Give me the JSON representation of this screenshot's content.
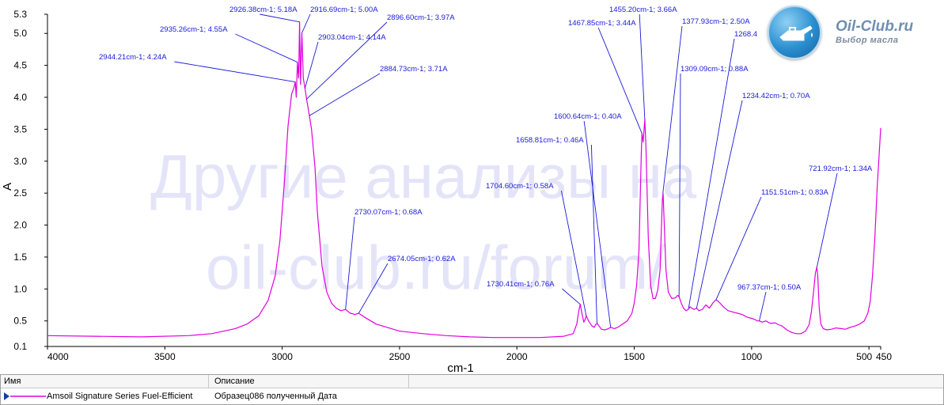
{
  "chart_data": {
    "type": "line",
    "xlabel": "cm-1",
    "ylabel": "A",
    "xlim": [
      4000,
      450
    ],
    "ylim": [
      0.1,
      5.3
    ],
    "x_ticks": [
      {
        "v": 4000,
        "label": "4000"
      },
      {
        "v": 3500,
        "label": "3500"
      },
      {
        "v": 3000,
        "label": "3000"
      },
      {
        "v": 2500,
        "label": "2500"
      },
      {
        "v": 2000,
        "label": "2000"
      },
      {
        "v": 1500,
        "label": "1500"
      },
      {
        "v": 1000,
        "label": "1000"
      },
      {
        "v": 500,
        "label": "500"
      },
      {
        "v": 450,
        "label": "450"
      }
    ],
    "y_ticks": [
      {
        "v": 5.3,
        "label": "5.3"
      },
      {
        "v": 5.0,
        "label": "5.0"
      },
      {
        "v": 4.5,
        "label": "4.5"
      },
      {
        "v": 4.0,
        "label": "4.0"
      },
      {
        "v": 3.5,
        "label": "3.5"
      },
      {
        "v": 3.0,
        "label": "3.0"
      },
      {
        "v": 2.5,
        "label": "2.5"
      },
      {
        "v": 2.0,
        "label": "2.0"
      },
      {
        "v": 1.5,
        "label": "1.5"
      },
      {
        "v": 1.0,
        "label": "1.0"
      },
      {
        "v": 0.5,
        "label": "0.5"
      },
      {
        "v": 0.1,
        "label": "0.1"
      }
    ],
    "series": [
      {
        "name": "Amsoil Signature Series Fuel-Efficient",
        "color": "#e000e0",
        "x": [
          4000,
          3800,
          3600,
          3400,
          3300,
          3200,
          3150,
          3100,
          3060,
          3030,
          3010,
          2990,
          2975,
          2960,
          2950,
          2944,
          2940,
          2935,
          2930,
          2926,
          2922,
          2919,
          2916,
          2910,
          2903,
          2896,
          2884,
          2875,
          2860,
          2850,
          2830,
          2810,
          2790,
          2770,
          2750,
          2730,
          2710,
          2690,
          2674,
          2650,
          2600,
          2500,
          2400,
          2300,
          2200,
          2100,
          2000,
          1900,
          1800,
          1760,
          1745,
          1735,
          1730,
          1722,
          1715,
          1710,
          1704,
          1695,
          1680,
          1670,
          1665,
          1658,
          1650,
          1640,
          1625,
          1610,
          1600,
          1585,
          1570,
          1550,
          1530,
          1510,
          1500,
          1490,
          1480,
          1470,
          1467,
          1462,
          1455,
          1450,
          1440,
          1430,
          1420,
          1410,
          1400,
          1390,
          1385,
          1380,
          1377,
          1372,
          1365,
          1355,
          1340,
          1325,
          1315,
          1309,
          1300,
          1290,
          1280,
          1270,
          1262,
          1255,
          1245,
          1234,
          1225,
          1210,
          1195,
          1180,
          1165,
          1155,
          1151,
          1140,
          1120,
          1100,
          1080,
          1060,
          1040,
          1020,
          1000,
          985,
          975,
          967,
          955,
          940,
          920,
          900,
          885,
          870,
          850,
          830,
          810,
          790,
          770,
          755,
          745,
          735,
          728,
          722,
          718,
          712,
          705,
          695,
          680,
          660,
          640,
          620,
          600,
          580,
          560,
          540,
          520,
          505,
          495,
          485,
          475,
          465,
          455,
          450
        ],
        "y": [
          0.27,
          0.26,
          0.25,
          0.27,
          0.3,
          0.38,
          0.45,
          0.58,
          0.82,
          1.2,
          1.75,
          2.7,
          3.55,
          4.05,
          4.15,
          4.24,
          4.0,
          4.55,
          4.3,
          5.18,
          4.2,
          4.6,
          5.0,
          4.3,
          4.14,
          3.97,
          3.71,
          3.5,
          2.9,
          2.2,
          1.35,
          0.95,
          0.78,
          0.7,
          0.66,
          0.68,
          0.62,
          0.6,
          0.62,
          0.56,
          0.45,
          0.34,
          0.3,
          0.27,
          0.25,
          0.24,
          0.24,
          0.24,
          0.26,
          0.3,
          0.45,
          0.68,
          0.76,
          0.6,
          0.48,
          0.52,
          0.58,
          0.5,
          0.42,
          0.4,
          0.44,
          0.46,
          0.42,
          0.37,
          0.36,
          0.38,
          0.4,
          0.38,
          0.4,
          0.45,
          0.5,
          0.62,
          0.78,
          1.05,
          1.6,
          3.1,
          3.44,
          3.3,
          3.66,
          3.2,
          1.8,
          1.05,
          0.85,
          0.85,
          0.98,
          1.3,
          1.9,
          2.4,
          2.5,
          2.0,
          1.3,
          0.95,
          0.85,
          0.86,
          0.9,
          0.88,
          0.78,
          0.7,
          0.66,
          0.68,
          0.72,
          0.7,
          0.68,
          0.7,
          0.66,
          0.68,
          0.75,
          0.7,
          0.78,
          0.82,
          0.83,
          0.8,
          0.72,
          0.66,
          0.64,
          0.62,
          0.6,
          0.56,
          0.54,
          0.52,
          0.5,
          0.5,
          0.48,
          0.5,
          0.46,
          0.47,
          0.44,
          0.42,
          0.36,
          0.32,
          0.3,
          0.3,
          0.34,
          0.44,
          0.65,
          1.0,
          1.25,
          1.34,
          1.2,
          0.7,
          0.45,
          0.38,
          0.36,
          0.37,
          0.39,
          0.38,
          0.37,
          0.4,
          0.42,
          0.45,
          0.5,
          0.62,
          0.8,
          1.2,
          1.8,
          2.6,
          3.2,
          3.52
        ]
      }
    ],
    "annotations": [
      {
        "label": "2944.21cm-1; 4.24A",
        "x": 2944.21,
        "y": 4.24
      },
      {
        "label": "2935.26cm-1; 4.55A",
        "x": 2935.26,
        "y": 4.55
      },
      {
        "label": "2926.38cm-1; 5.18A",
        "x": 2926.38,
        "y": 5.18
      },
      {
        "label": "2916.69cm-1; 5.00A",
        "x": 2916.69,
        "y": 5.0
      },
      {
        "label": "2903.04cm-1; 4.14A",
        "x": 2903.04,
        "y": 4.14
      },
      {
        "label": "2896.60cm-1; 3.97A",
        "x": 2896.6,
        "y": 3.97
      },
      {
        "label": "2884.73cm-1; 3.71A",
        "x": 2884.73,
        "y": 3.71
      },
      {
        "label": "2730.07cm-1; 0.68A",
        "x": 2730.07,
        "y": 0.68
      },
      {
        "label": "2674.05cm-1; 0.62A",
        "x": 2674.05,
        "y": 0.62
      },
      {
        "label": "1730.41cm-1; 0.76A",
        "x": 1730.41,
        "y": 0.76
      },
      {
        "label": "1704.60cm-1; 0.58A",
        "x": 1704.6,
        "y": 0.58
      },
      {
        "label": "1658.81cm-1; 0.46A",
        "x": 1658.81,
        "y": 0.46
      },
      {
        "label": "1600.64cm-1; 0.40A",
        "x": 1600.64,
        "y": 0.4
      },
      {
        "label": "1467.85cm-1; 3.44A",
        "x": 1467.85,
        "y": 3.44
      },
      {
        "label": "1455.20cm-1; 3.66A",
        "x": 1455.2,
        "y": 3.66
      },
      {
        "label": "1377.93cm-1; 2.50A",
        "x": 1377.93,
        "y": 2.5
      },
      {
        "label": "1309.09cm-1; 0.88A",
        "x": 1309.09,
        "y": 0.88
      },
      {
        "label": "1268.4",
        "x": 1268.4,
        "y": 0.7
      },
      {
        "label": "1234.42cm-1; 0.70A",
        "x": 1234.42,
        "y": 0.7
      },
      {
        "label": "1151.51cm-1; 0.83A",
        "x": 1151.51,
        "y": 0.83
      },
      {
        "label": "967.37cm-1; 0.50A",
        "x": 967.37,
        "y": 0.5
      },
      {
        "label": "721.92cm-1; 1.34A",
        "x": 721.92,
        "y": 1.34
      }
    ],
    "watermark": [
      "Другие анализы на",
      "oil-club.ru/forum/"
    ]
  },
  "logo": {
    "title": "Oil-Club.ru",
    "subtitle": "Выбор масла",
    "icon": "oil-can-icon"
  },
  "legend_table": {
    "headers": [
      "Имя",
      "Описание"
    ],
    "rows": [
      {
        "name": "Amsoil Signature Series Fuel-Efficient",
        "description": "Образец086 полученный  Дата"
      }
    ]
  }
}
